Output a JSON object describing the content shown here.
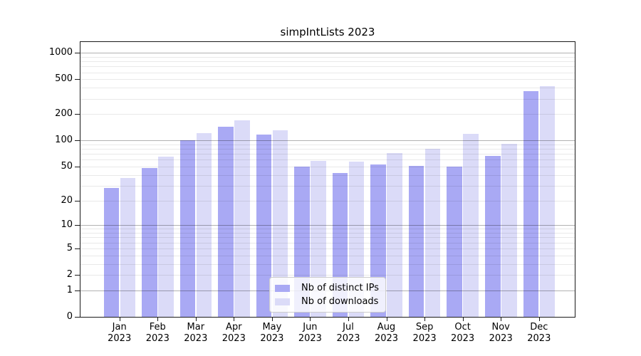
{
  "chart_data": {
    "type": "bar",
    "title": "simpIntLists 2023",
    "categories": [
      "Jan 2023",
      "Feb 2023",
      "Mar 2023",
      "Apr 2023",
      "May 2023",
      "Jun 2023",
      "Jul 2023",
      "Aug 2023",
      "Sep 2023",
      "Oct 2023",
      "Nov 2023",
      "Dec 2023"
    ],
    "series": [
      {
        "name": "Nb of distinct IPs",
        "color": "#a9a9f4",
        "values": [
          28,
          48,
          101,
          145,
          118,
          50,
          42,
          53,
          51,
          50,
          66,
          366
        ]
      },
      {
        "name": "Nb of downloads",
        "color": "#dbdbf8",
        "values": [
          37,
          65,
          121,
          170,
          130,
          58,
          57,
          71,
          81,
          119,
          91,
          420
        ]
      }
    ],
    "yscale": "log10(value+1)",
    "ylim": [
      0,
      1326
    ],
    "yticks": [
      0,
      1,
      2,
      5,
      10,
      20,
      50,
      100,
      200,
      500,
      1000
    ],
    "ytick_labels": [
      "0",
      "1",
      "2",
      "5",
      "10",
      "20",
      "50",
      "100",
      "200",
      "500",
      "1000"
    ],
    "major_grid_at": [
      1,
      10,
      100,
      1000
    ],
    "minor_grid_at": [
      2,
      3,
      4,
      5,
      6,
      7,
      8,
      9,
      20,
      30,
      40,
      50,
      60,
      70,
      80,
      90,
      200,
      300,
      400,
      500,
      600,
      700,
      800,
      900
    ],
    "grid": true,
    "legend_position": "lower center",
    "xlabel": "",
    "ylabel": ""
  }
}
